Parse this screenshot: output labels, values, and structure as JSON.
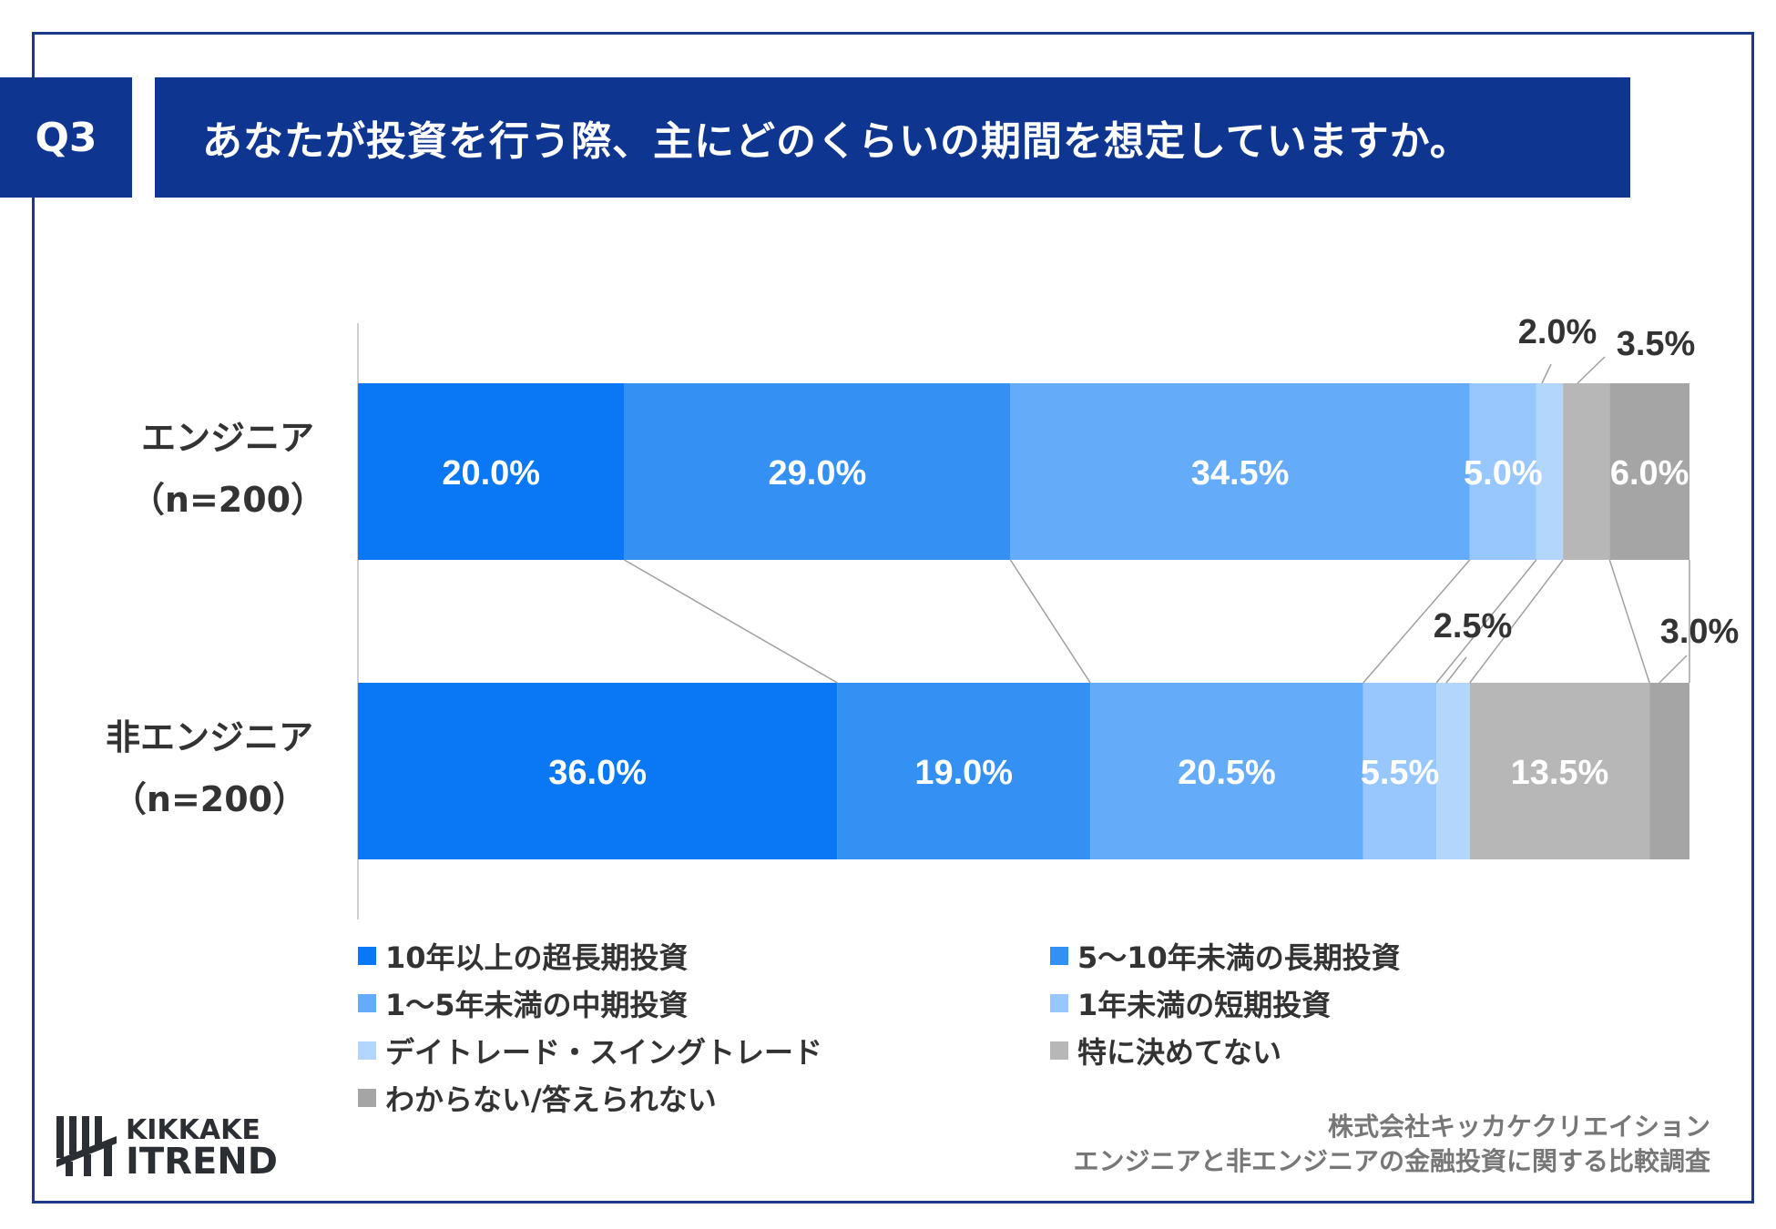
{
  "header": {
    "q_label": "Q3",
    "title": "あなたが投資を行う際、主にどのくらいの期間を想定していますか。"
  },
  "chart_data": {
    "type": "bar",
    "orientation": "horizontal-stacked-100",
    "categories": [
      {
        "name": "エンジニア",
        "n": "（n=200）"
      },
      {
        "name": "非エンジニア",
        "n": "（n=200）"
      }
    ],
    "series": [
      {
        "name": "10年以上の超長期投資",
        "color": "#0a78f5",
        "values": [
          20.0,
          36.0
        ]
      },
      {
        "name": "5～10年未満の長期投資",
        "color": "#3590f3",
        "values": [
          29.0,
          19.0
        ]
      },
      {
        "name": "1～5年未満の中期投資",
        "color": "#64acfa",
        "values": [
          34.5,
          20.5
        ]
      },
      {
        "name": "1年未満の短期投資",
        "color": "#97c7fc",
        "values": [
          5.0,
          5.5
        ]
      },
      {
        "name": "デイトレード・スイングトレード",
        "color": "#b2d6fc",
        "values": [
          2.0,
          2.5
        ]
      },
      {
        "name": "特に決めてない",
        "color": "#b7b7b7",
        "values": [
          3.5,
          13.5
        ]
      },
      {
        "name": "わからない/答えられない",
        "color": "#a5a5a5",
        "values": [
          6.0,
          3.0
        ]
      }
    ],
    "data_labels": [
      [
        "20.0%",
        "29.0%",
        "34.5%",
        "5.0%",
        "2.0%",
        "3.5%",
        "6.0%"
      ],
      [
        "36.0%",
        "19.0%",
        "20.5%",
        "5.5%",
        "2.5%",
        "13.5%",
        "3.0%"
      ]
    ],
    "xlim": [
      0,
      100
    ],
    "legend_position": "bottom"
  },
  "footer": {
    "line1": "株式会社キッカケクリエイション",
    "line2": "エンジニアと非エンジニアの金融投資に関する比較調査"
  },
  "logo": {
    "line1": "KIKKAKE",
    "line2": "ITREND"
  }
}
